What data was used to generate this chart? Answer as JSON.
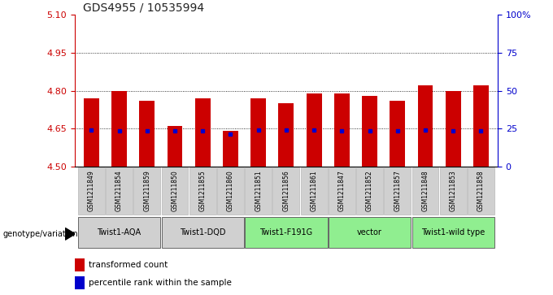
{
  "title": "GDS4955 / 10535994",
  "samples": [
    "GSM1211849",
    "GSM1211854",
    "GSM1211859",
    "GSM1211850",
    "GSM1211855",
    "GSM1211860",
    "GSM1211851",
    "GSM1211856",
    "GSM1211861",
    "GSM1211847",
    "GSM1211852",
    "GSM1211857",
    "GSM1211848",
    "GSM1211853",
    "GSM1211858"
  ],
  "bar_tops": [
    4.77,
    4.8,
    4.76,
    4.66,
    4.77,
    4.64,
    4.77,
    4.75,
    4.79,
    4.79,
    4.78,
    4.76,
    4.82,
    4.8,
    4.82
  ],
  "blue_dots": [
    4.645,
    4.643,
    4.643,
    4.642,
    4.643,
    4.63,
    4.644,
    4.644,
    4.644,
    4.642,
    4.641,
    4.641,
    4.644,
    4.641,
    4.643
  ],
  "bar_bottom": 4.5,
  "ylim": [
    4.5,
    5.1
  ],
  "right_ylim": [
    0,
    100
  ],
  "right_yticks": [
    0,
    25,
    50,
    75,
    100
  ],
  "right_yticklabels": [
    "0",
    "25",
    "50",
    "75",
    "100%"
  ],
  "left_yticks": [
    4.5,
    4.65,
    4.8,
    4.95,
    5.1
  ],
  "grid_lines": [
    4.65,
    4.8,
    4.95
  ],
  "groups": [
    {
      "label": "Twist1-AQA",
      "indices": [
        0,
        1,
        2
      ],
      "color": "#d0d0d0"
    },
    {
      "label": "Twist1-DQD",
      "indices": [
        3,
        4,
        5
      ],
      "color": "#d0d0d0"
    },
    {
      "label": "Twist1-F191G",
      "indices": [
        6,
        7,
        8
      ],
      "color": "#90ee90"
    },
    {
      "label": "vector",
      "indices": [
        9,
        10,
        11
      ],
      "color": "#90ee90"
    },
    {
      "label": "Twist1-wild type",
      "indices": [
        12,
        13,
        14
      ],
      "color": "#90ee90"
    }
  ],
  "bar_color": "#cc0000",
  "dot_color": "#0000cc",
  "left_tick_color": "#cc0000",
  "right_tick_color": "#0000cc",
  "genotype_label": "genotype/variation",
  "legend1": "transformed count",
  "legend2": "percentile rank within the sample",
  "sample_box_color": "#d0d0d0",
  "sample_box_edge": "#aaaaaa",
  "bar_width": 0.55,
  "title_fontsize": 10,
  "tick_fontsize": 8,
  "label_fontsize": 7,
  "sample_fontsize": 5.5
}
